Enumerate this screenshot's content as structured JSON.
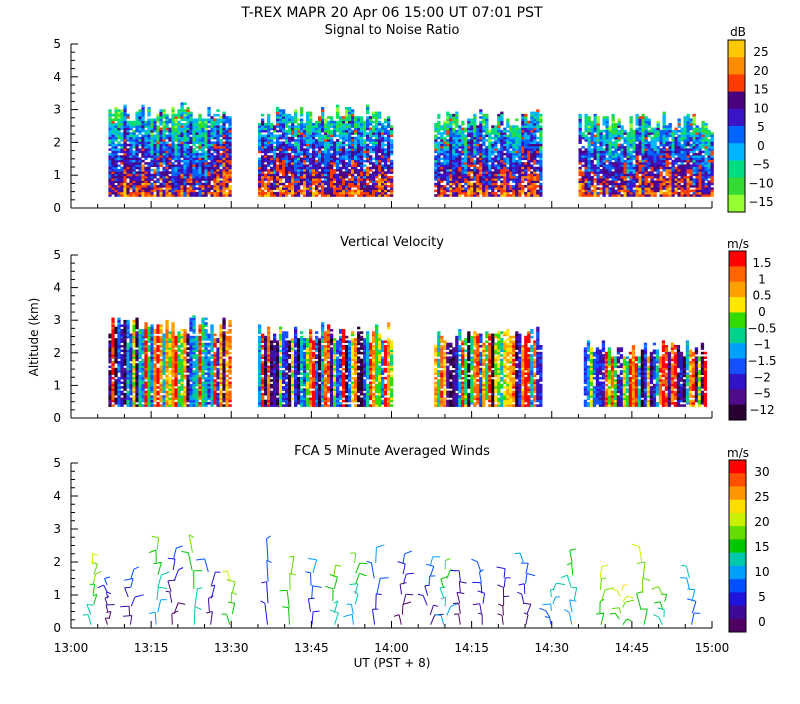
{
  "header": {
    "line1": "T-REX  MAPR 20 Apr 06  15:00 UT  07:01  PST"
  },
  "x_axis": {
    "label": "UT  (PST + 8)",
    "range_minutes": [
      780,
      900
    ],
    "ticks": [
      {
        "label": "13:00",
        "v": 780
      },
      {
        "label": "13:15",
        "v": 795
      },
      {
        "label": "13:30",
        "v": 810
      },
      {
        "label": "13:45",
        "v": 825
      },
      {
        "label": "14:00",
        "v": 840
      },
      {
        "label": "14:15",
        "v": 855
      },
      {
        "label": "14:30",
        "v": 870
      },
      {
        "label": "14:45",
        "v": 885
      },
      {
        "label": "15:00",
        "v": 900
      }
    ]
  },
  "y_axis": {
    "label": "Altitude (km)",
    "range": [
      0,
      5
    ],
    "ticks": [
      "0",
      "1",
      "2",
      "3",
      "4",
      "5"
    ]
  },
  "chart_data": [
    {
      "type": "heatmap",
      "title": "Signal to Noise Ratio",
      "xlabel": "",
      "ylabel": "",
      "ylim": [
        0,
        5
      ],
      "colorbar": {
        "unit": "dB",
        "labels": [
          "25",
          "20",
          "15",
          "10",
          "5",
          "0",
          "−5",
          "−10",
          "−15"
        ],
        "colors": [
          "#ffc800",
          "#ff8c00",
          "#ff3c00",
          "#4b0082",
          "#3c14c8",
          "#0064ff",
          "#00b4ff",
          "#00dc82",
          "#32dc32",
          "#96ff32"
        ]
      },
      "data_segments_minutes": [
        [
          787,
          810
        ],
        [
          815,
          840
        ],
        [
          848,
          868
        ],
        [
          875,
          900
        ]
      ],
      "top_km_approx": [
        2.9,
        2.8,
        2.7,
        2.6
      ]
    },
    {
      "type": "heatmap",
      "title": "Vertical Velocity",
      "xlabel": "",
      "ylabel": "Altitude (km)",
      "ylim": [
        0,
        5
      ],
      "colorbar": {
        "unit": "m/s",
        "labels": [
          "1.5",
          "1",
          "0.5",
          "0",
          "−0.5",
          "−1",
          "−1.5",
          "−2",
          "−5",
          "−12"
        ],
        "colors": [
          "#ff0000",
          "#ff6400",
          "#ffa000",
          "#ffe600",
          "#32dc00",
          "#00d28c",
          "#00a0ff",
          "#1450ff",
          "#3214c8",
          "#500a8c",
          "#280032"
        ]
      },
      "data_segments_minutes": [
        [
          787,
          810
        ],
        [
          815,
          840
        ],
        [
          848,
          868
        ],
        [
          876,
          899
        ]
      ],
      "top_km_approx": [
        2.8,
        2.6,
        2.5,
        2.1
      ]
    },
    {
      "type": "scatter",
      "title": "FCA 5 Minute Averaged Winds",
      "xlabel": "UT  (PST + 8)",
      "ylabel": "",
      "ylim": [
        0,
        5
      ],
      "colorbar": {
        "unit": "m/s",
        "labels": [
          "30",
          "25",
          "20",
          "15",
          "10",
          "5",
          "0"
        ],
        "colors": [
          "#ff0000",
          "#ff5000",
          "#ff9600",
          "#ffdc00",
          "#c8f000",
          "#64dc00",
          "#00c800",
          "#00c8aa",
          "#00a0ff",
          "#0050ff",
          "#1e14dc",
          "#3c0a96",
          "#500064"
        ]
      },
      "barb_columns_minutes": [
        784,
        787,
        791,
        796,
        799,
        803,
        806,
        810,
        817,
        821,
        825,
        829,
        833,
        837,
        842,
        847,
        850,
        853,
        857,
        861,
        865,
        870,
        874,
        879,
        883,
        887,
        891,
        896
      ],
      "max_altitude_km_approx": 2.9
    }
  ]
}
